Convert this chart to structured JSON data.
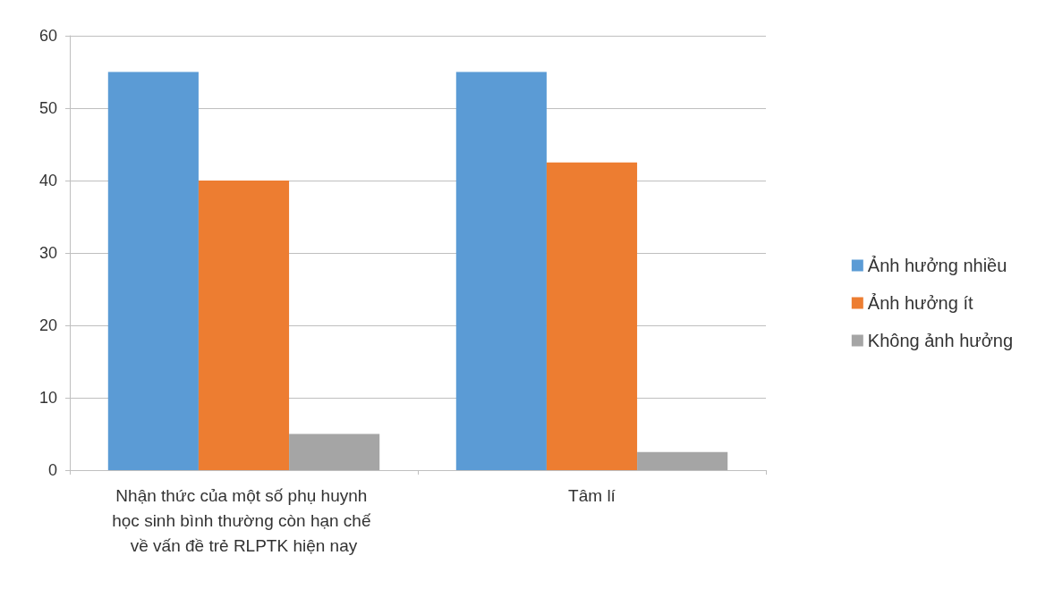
{
  "chart_data": {
    "type": "bar",
    "categories": [
      "Nhận thức của một số phụ huynh học sinh bình thường còn hạn chế về vấn đề trẻ RLPTK hiện nay",
      "Tâm lí"
    ],
    "series": [
      {
        "name": "Ảnh hưởng nhiều",
        "color": "#5b9bd5",
        "values": [
          55,
          55
        ]
      },
      {
        "name": "Ảnh hưởng ít",
        "color": "#ed7d31",
        "values": [
          40,
          42.5
        ]
      },
      {
        "name": "Không ảnh hưởng",
        "color": "#a5a5a5",
        "values": [
          5,
          2.5
        ]
      }
    ],
    "ylim": [
      0,
      60
    ],
    "yticks": [
      0,
      10,
      20,
      30,
      40,
      50,
      60
    ],
    "grid": "y",
    "legend": "right"
  }
}
